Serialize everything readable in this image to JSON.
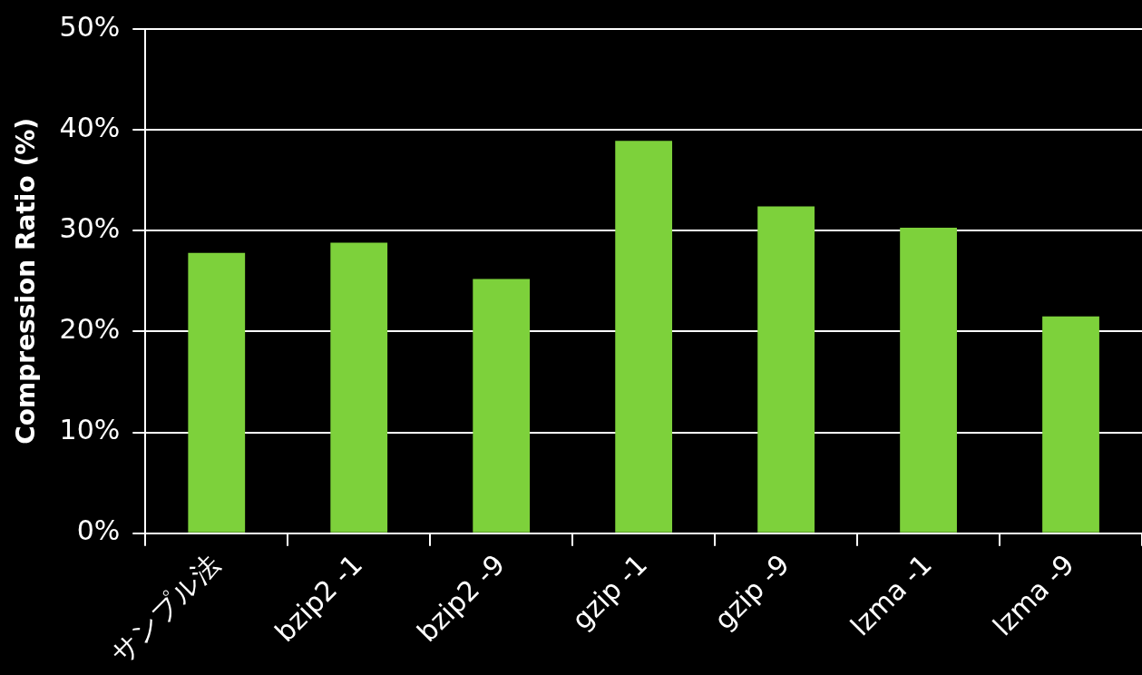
{
  "chart_data": {
    "type": "bar",
    "ylabel": "Compression Ratio (%)",
    "categories": [
      "サンプル法",
      "bzip2 -1",
      "bzip2 -9",
      "gzip -1",
      "gzip -9",
      "lzma -1",
      "lzma -9"
    ],
    "values": [
      27.8,
      28.8,
      25.2,
      38.9,
      32.4,
      30.3,
      21.5
    ],
    "color": "#7dd13b",
    "ylim": [
      0,
      50
    ],
    "yticks": [
      {
        "value": 0,
        "label": "0%"
      },
      {
        "value": 10,
        "label": "10%"
      },
      {
        "value": 20,
        "label": "20%"
      },
      {
        "value": 30,
        "label": "30%"
      },
      {
        "value": 40,
        "label": "40%"
      },
      {
        "value": 50,
        "label": "50%"
      }
    ],
    "grid": "y"
  }
}
